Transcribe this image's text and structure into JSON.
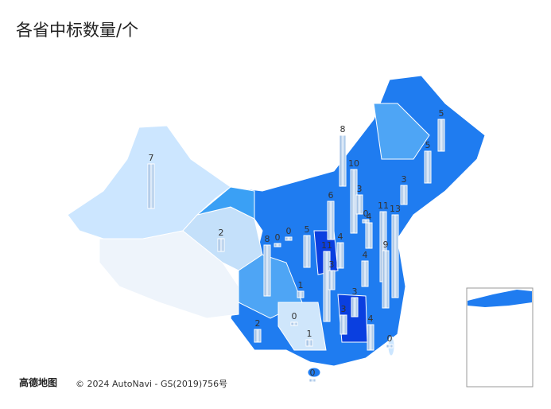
{
  "title": "各省中标数量/个",
  "bars": [
    5,
    5,
    8,
    3,
    10,
    3,
    6,
    0,
    4,
    11,
    13,
    7,
    2,
    0,
    8,
    0,
    5,
    4,
    11,
    9,
    4,
    3,
    1,
    3,
    0,
    3,
    4,
    2,
    1,
    0,
    0
  ],
  "logo": "高德地图",
  "attribution": "© 2024 AutoNavi - GS(2019)756号"
}
